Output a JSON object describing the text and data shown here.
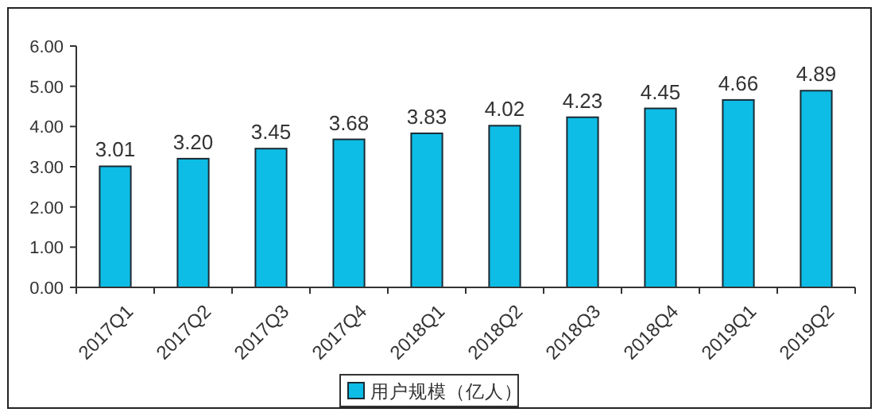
{
  "chart_data": {
    "type": "bar",
    "categories": [
      "2017Q1",
      "2017Q2",
      "2017Q3",
      "2017Q4",
      "2018Q1",
      "2018Q2",
      "2018Q3",
      "2018Q4",
      "2019Q1",
      "2019Q2"
    ],
    "series": [
      {
        "name": "用户规模（亿人）",
        "color": "#0ebde6",
        "values": [
          3.01,
          3.2,
          3.45,
          3.68,
          3.83,
          4.02,
          4.23,
          4.45,
          4.66,
          4.89
        ],
        "value_labels": [
          "3.01",
          "3.20",
          "3.45",
          "3.68",
          "3.83",
          "4.02",
          "4.23",
          "4.45",
          "4.66",
          "4.89"
        ]
      }
    ],
    "ylim": [
      0,
      6
    ],
    "yticks": [
      {
        "value": 0,
        "label": "0.00"
      },
      {
        "value": 1,
        "label": "1.00"
      },
      {
        "value": 2,
        "label": "2.00"
      },
      {
        "value": 3,
        "label": "3.00"
      },
      {
        "value": 4,
        "label": "4.00"
      },
      {
        "value": 5,
        "label": "5.00"
      },
      {
        "value": 6,
        "label": "6.00"
      }
    ],
    "grid": false,
    "legend": "bottom"
  }
}
